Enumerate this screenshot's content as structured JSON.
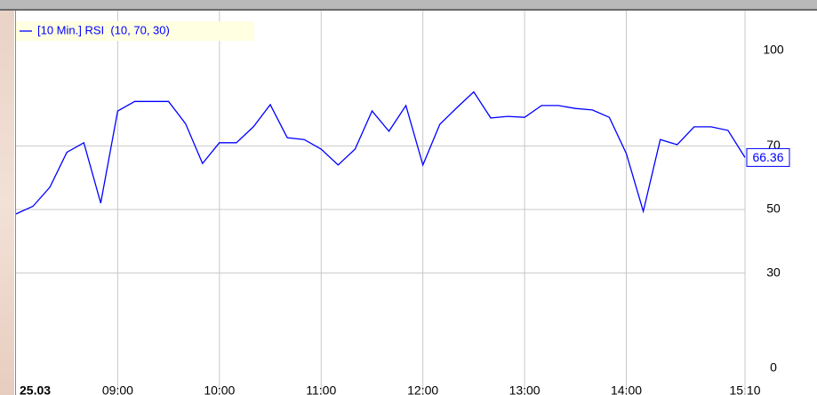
{
  "chart_data": {
    "type": "line",
    "categories": [
      "25.03",
      null,
      null,
      null,
      null,
      null,
      "09:00",
      null,
      null,
      null,
      null,
      null,
      "10:00",
      null,
      null,
      null,
      null,
      null,
      "11:00",
      null,
      null,
      null,
      null,
      null,
      "12:00",
      null,
      null,
      null,
      null,
      null,
      "13:00",
      null,
      null,
      null,
      null,
      null,
      "14:00",
      null,
      null,
      null,
      null,
      null,
      null,
      "15:10"
    ],
    "series": [
      {
        "name": "[10 Min.] RSI  (10, 70, 30)",
        "color": "#0000ff",
        "values": [
          48.6,
          51,
          57,
          68,
          71,
          52,
          81,
          84,
          84,
          84,
          77,
          64.5,
          71,
          71,
          76,
          83,
          72.6,
          72,
          69,
          64,
          69,
          81,
          74.6,
          82.7,
          64,
          76.8,
          82,
          87,
          78.8,
          79.3,
          79,
          82.7,
          82.7,
          81.8,
          81.3,
          79,
          67.6,
          49.4,
          72,
          70.4,
          76,
          76,
          74.9,
          66.36
        ]
      }
    ],
    "ylim": [
      0,
      100
    ],
    "yticks": [
      0,
      30,
      50,
      70,
      100
    ],
    "grid": true,
    "legend": "top-left"
  }
}
